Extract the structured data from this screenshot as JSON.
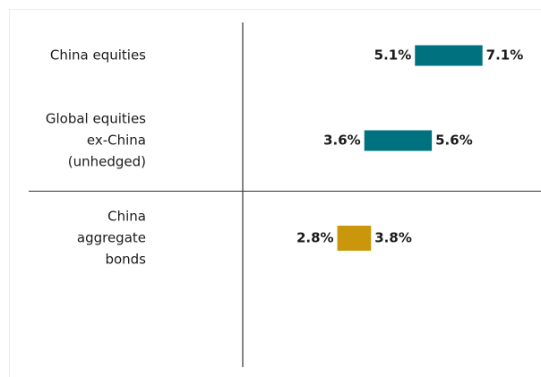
{
  "chart_data": {
    "type": "range_bar",
    "categories": [
      [
        "China equities"
      ],
      [
        "Global equities",
        "ex-China",
        "(unhedged)"
      ],
      [
        "China",
        "aggregate",
        "bonds"
      ]
    ],
    "series": [
      {
        "name": "low",
        "values": [
          5.1,
          3.6,
          2.8
        ],
        "value_labels": [
          "5.1%",
          "3.6%",
          "2.8%"
        ]
      },
      {
        "name": "high",
        "values": [
          7.1,
          5.6,
          3.8
        ],
        "value_labels": [
          "7.1%",
          "5.6%",
          "3.8%"
        ]
      }
    ],
    "colors": [
      "#00727f",
      "#00727f",
      "#c9960c"
    ],
    "xlim": [
      0,
      8.7
    ]
  }
}
